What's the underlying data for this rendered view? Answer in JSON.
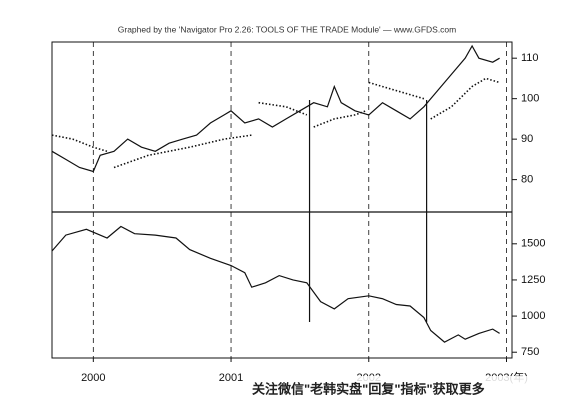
{
  "header": {
    "title": "Graphed by the 'Navigator Pro 2.26: TOOLS OF THE TRADE Module' — www.GFDS.com"
  },
  "watermark": "关注微信\"老韩实盘\"回复\"指标\"获取更多",
  "markers_x": [
    2001.57,
    2002.42
  ],
  "chart_data": [
    {
      "type": "line",
      "xlim": [
        1999.7,
        2003.04
      ],
      "xticks": [
        2000,
        2001,
        2002,
        2003
      ],
      "show_xtick_labels": false,
      "ylim": [
        72,
        114
      ],
      "yticks": [
        80,
        90,
        100,
        110
      ],
      "series": [
        {
          "color": "#111",
          "style": "solid",
          "x": [
            1999.7,
            1999.8,
            1999.9,
            2000.0,
            2000.05,
            2000.15,
            2000.25,
            2000.35,
            2000.45,
            2000.55,
            2000.65,
            2000.75,
            2000.85,
            2000.95,
            2001.0,
            2001.1,
            2001.2,
            2001.3,
            2001.4,
            2001.5,
            2001.6,
            2001.7,
            2001.75,
            2001.8,
            2001.9,
            2002.0,
            2002.1,
            2002.2,
            2002.3,
            2002.4,
            2002.45,
            2002.5,
            2002.6,
            2002.7,
            2002.75,
            2002.8,
            2002.9,
            2002.95
          ],
          "values": [
            87,
            85,
            83,
            82,
            86,
            87,
            90,
            88,
            87,
            89,
            90,
            91,
            94,
            96,
            97,
            94,
            95,
            93,
            95,
            97,
            99,
            98,
            103,
            99,
            97,
            96,
            99,
            97,
            95,
            98,
            100,
            102,
            106,
            110,
            113,
            110,
            109,
            110
          ]
        },
        {
          "color": "#111",
          "style": "dotted",
          "x": [
            1999.7,
            1999.85,
            2000.0,
            2000.1,
            null,
            2000.15,
            2000.4,
            2000.7,
            2000.95,
            2001.15,
            null,
            2001.2,
            2001.4,
            2001.55,
            null,
            2001.6,
            2001.75,
            2001.9,
            2001.98,
            null,
            2002.0,
            2002.2,
            2002.4,
            null,
            2002.45,
            2002.6,
            2002.75,
            2002.85,
            2002.95
          ],
          "values": [
            91,
            90,
            88,
            87,
            null,
            83,
            86,
            88,
            90,
            91,
            null,
            99,
            98,
            96,
            null,
            93,
            95,
            96,
            97,
            null,
            104,
            102,
            100,
            null,
            95,
            98,
            103,
            105,
            104
          ]
        }
      ]
    },
    {
      "type": "line",
      "xlim": [
        1999.7,
        2003.04
      ],
      "xticks": [
        2000,
        2001,
        2002,
        {
          "value": 2003,
          "label": "2003(年)"
        }
      ],
      "show_xtick_labels": true,
      "ylim": [
        710,
        1720
      ],
      "yticks": [
        750,
        1000,
        1250,
        1500
      ],
      "series": [
        {
          "color": "#111",
          "style": "solid",
          "x": [
            1999.7,
            1999.8,
            1999.95,
            2000.1,
            2000.2,
            2000.3,
            2000.45,
            2000.6,
            2000.7,
            2000.85,
            2001.0,
            2001.1,
            2001.15,
            2001.25,
            2001.35,
            2001.45,
            2001.55,
            2001.65,
            2001.75,
            2001.85,
            2002.0,
            2002.1,
            2002.2,
            2002.3,
            2002.4,
            2002.45,
            2002.55,
            2002.65,
            2002.7,
            2002.8,
            2002.9,
            2002.95
          ],
          "values": [
            1450,
            1560,
            1600,
            1540,
            1620,
            1570,
            1560,
            1540,
            1460,
            1400,
            1350,
            1300,
            1200,
            1230,
            1280,
            1250,
            1230,
            1100,
            1050,
            1120,
            1140,
            1120,
            1080,
            1070,
            990,
            900,
            820,
            870,
            840,
            880,
            910,
            880
          ]
        }
      ]
    }
  ]
}
